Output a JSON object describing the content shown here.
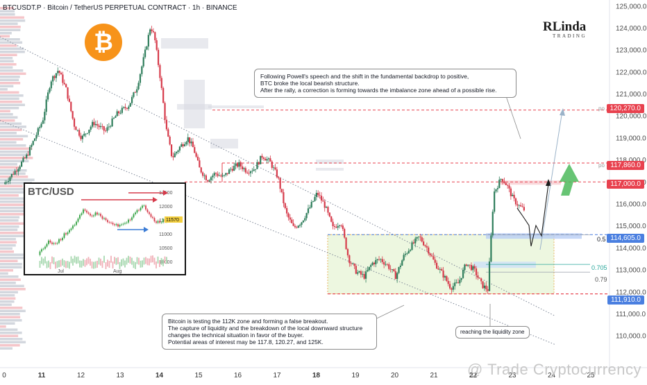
{
  "header": {
    "title": "BTCUSDT.P · Bitcoin / TetherUS PERPETUAL CONTRACT · 1h · BINANCE"
  },
  "logo": {
    "line1": "RLinda",
    "line2": "TRADING"
  },
  "btc_icon": {
    "symbol": "₿",
    "color": "#f7931a"
  },
  "annotations": {
    "top_note": [
      "Following Powell's speech and the shift in the fundamental backdrop to positive,",
      "BTC broke the local bearish structure.",
      "After the rally, a correction is forming towards the imbalance zone ahead of a possible rise."
    ],
    "bottom_note": [
      "Bitcoin is testing the 112K zone and forming a false breakout.",
      "The capture of liquidity and the breakdown of the local downward structure",
      "changes the technical situation in favor of the buyer.",
      "Potential areas of interest may be 117.8, 120.27, and 125K."
    ],
    "liquidity_note": "reaching the liquidity zone"
  },
  "fib_labels": {
    "f05": "0.5",
    "f0705": "0.705",
    "f079": "0.79",
    "po1": "po",
    "po2": "po"
  },
  "price_labels": [
    {
      "value": "120,270.0",
      "color": "#e8414e"
    },
    {
      "value": "117,860.0",
      "color": "#e8414e"
    },
    {
      "value": "117,000.0",
      "color": "#e8414e"
    },
    {
      "value": "114,605.0",
      "color": "#4a7fe0"
    },
    {
      "value": "111,910.0",
      "color": "#4a7fe0"
    }
  ],
  "watermark": "@ Trade Cryptocurrency",
  "inset": {
    "title": "BTC/USD",
    "yticks": [
      "12500",
      "12000",
      "11500",
      "11000",
      "10500",
      "10000"
    ],
    "xticks": [
      "Jul",
      "Aug"
    ],
    "price_tag": "11570"
  },
  "chart_data": {
    "type": "candlestick",
    "title": "BTCUSDT.P · Bitcoin / TetherUS PERPETUAL CONTRACT · 1h · BINANCE",
    "y_ticks": [
      110000,
      111000,
      112000,
      113000,
      114000,
      115000,
      116000,
      117000,
      118000,
      119000,
      120000,
      121000,
      122000,
      123000,
      124000,
      125000
    ],
    "ylim": [
      109500,
      125150
    ],
    "x_ticks": [
      "0",
      "11",
      "12",
      "13",
      "14",
      "15",
      "16",
      "17",
      "18",
      "19",
      "20",
      "21",
      "22",
      "23",
      "24",
      "25"
    ],
    "price_path": [
      [
        0,
        116900
      ],
      [
        0.3,
        117500
      ],
      [
        0.6,
        118200
      ],
      [
        1.0,
        119800
      ],
      [
        1.2,
        121600
      ],
      [
        1.4,
        122100
      ],
      [
        1.6,
        121200
      ],
      [
        1.8,
        119600
      ],
      [
        2.0,
        119000
      ],
      [
        2.3,
        119700
      ],
      [
        2.6,
        119300
      ],
      [
        2.9,
        120100
      ],
      [
        3.2,
        120500
      ],
      [
        3.4,
        121300
      ],
      [
        3.6,
        122800
      ],
      [
        3.75,
        124100
      ],
      [
        3.85,
        123600
      ],
      [
        4.0,
        121700
      ],
      [
        4.15,
        119400
      ],
      [
        4.3,
        118100
      ],
      [
        4.5,
        118600
      ],
      [
        4.7,
        119000
      ],
      [
        4.85,
        118500
      ],
      [
        5.0,
        117600
      ],
      [
        5.2,
        117100
      ],
      [
        5.4,
        117400
      ],
      [
        5.6,
        117200
      ],
      [
        5.8,
        117600
      ],
      [
        6.0,
        117800
      ],
      [
        6.2,
        117500
      ],
      [
        6.4,
        117600
      ],
      [
        6.6,
        118200
      ],
      [
        6.8,
        117900
      ],
      [
        7.0,
        117200
      ],
      [
        7.2,
        115600
      ],
      [
        7.4,
        114900
      ],
      [
        7.6,
        115200
      ],
      [
        7.8,
        115800
      ],
      [
        8.0,
        116500
      ],
      [
        8.2,
        115900
      ],
      [
        8.4,
        114900
      ],
      [
        8.6,
        115200
      ],
      [
        8.8,
        113500
      ],
      [
        9.0,
        112900
      ],
      [
        9.2,
        112700
      ],
      [
        9.4,
        113300
      ],
      [
        9.6,
        113500
      ],
      [
        9.8,
        113200
      ],
      [
        10.0,
        112700
      ],
      [
        10.2,
        113600
      ],
      [
        10.4,
        114100
      ],
      [
        10.6,
        114500
      ],
      [
        10.8,
        114000
      ],
      [
        11.0,
        113300
      ],
      [
        11.2,
        112800
      ],
      [
        11.4,
        112200
      ],
      [
        11.6,
        112400
      ],
      [
        11.8,
        113300
      ],
      [
        12.0,
        113000
      ],
      [
        12.2,
        112300
      ],
      [
        12.35,
        112100
      ],
      [
        12.5,
        116500
      ],
      [
        12.7,
        117200
      ],
      [
        12.85,
        116800
      ],
      [
        13.0,
        116200
      ],
      [
        13.15,
        115900
      ],
      [
        13.3,
        115700
      ]
    ],
    "levels": [
      {
        "price": 120270,
        "label": "120,270.0",
        "style": "dashed",
        "color": "red"
      },
      {
        "price": 117860,
        "label": "117,860.0",
        "style": "dashed",
        "color": "red"
      },
      {
        "price": 117000,
        "label": "117,000.0",
        "style": "dashed",
        "color": "red"
      },
      {
        "price": 114605,
        "label": "114,605.0",
        "style": "dashed",
        "color": "blue"
      },
      {
        "price": 111910,
        "label": "111,910.0",
        "style": "dashed",
        "color": "red"
      }
    ],
    "fibonacci": [
      {
        "label": "0.5",
        "price": 114600
      },
      {
        "label": "0.705",
        "price": 113250
      },
      {
        "label": "0.79",
        "price": 112900
      }
    ],
    "grid": false
  }
}
